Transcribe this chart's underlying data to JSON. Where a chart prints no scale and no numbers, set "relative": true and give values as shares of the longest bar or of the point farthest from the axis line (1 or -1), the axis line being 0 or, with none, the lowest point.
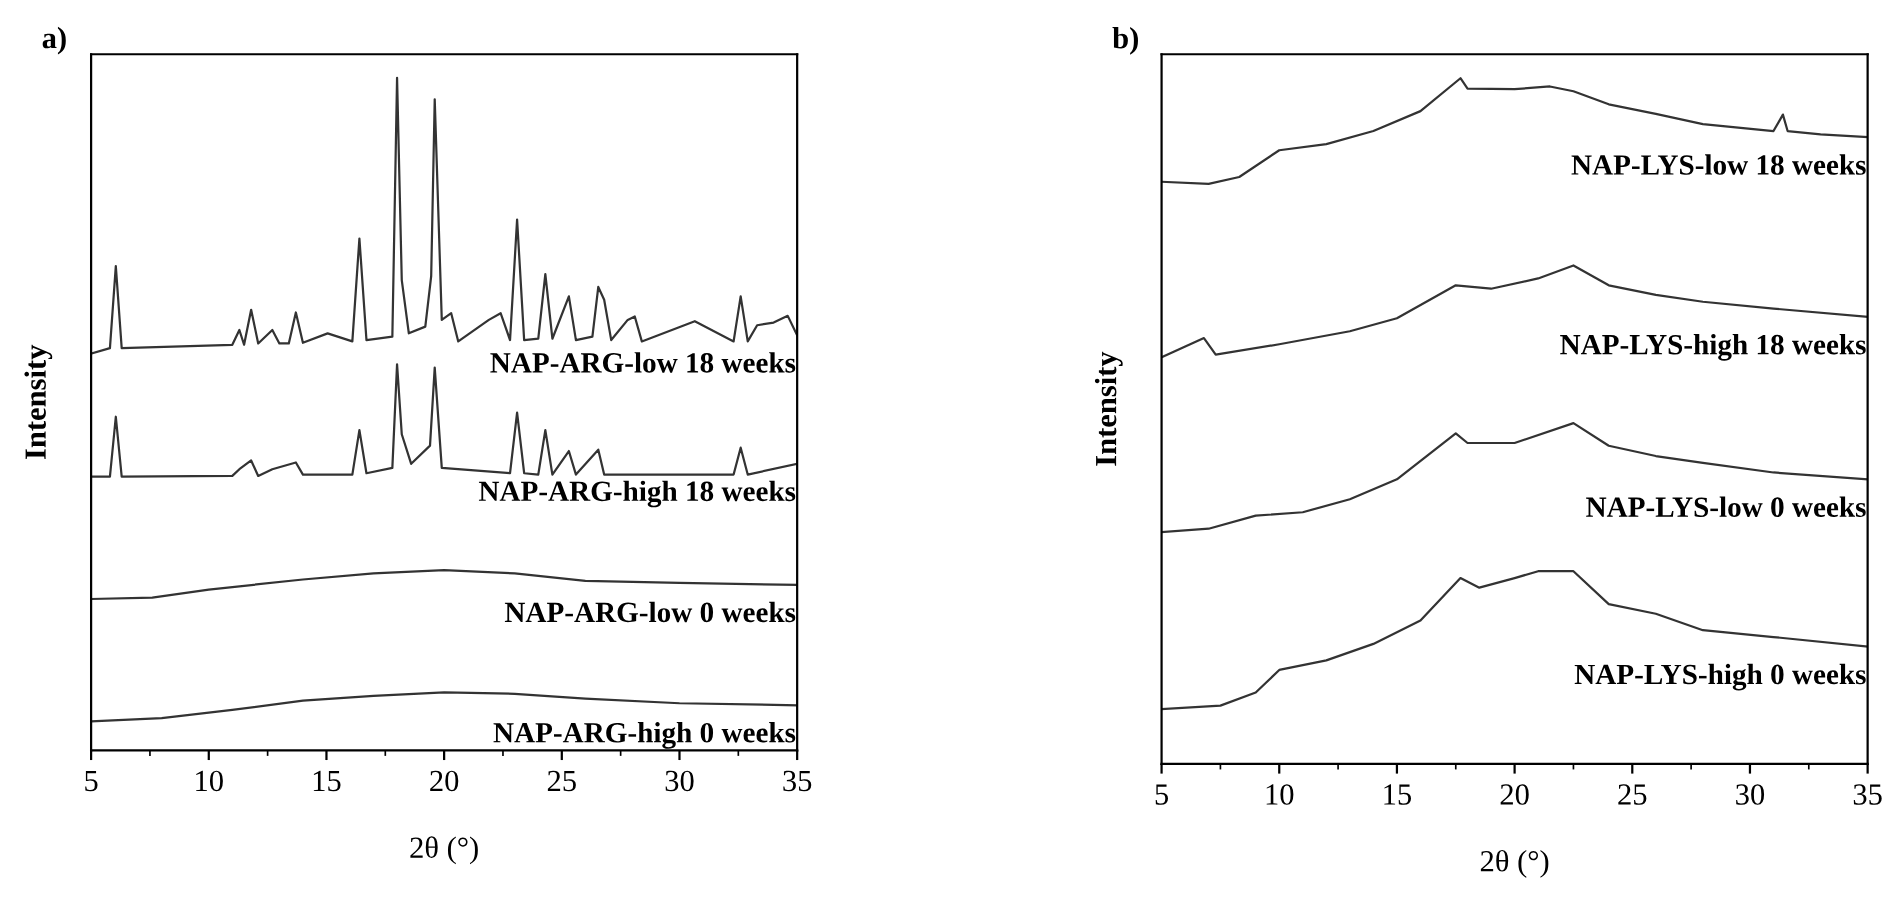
{
  "chart_data": [
    {
      "type": "line",
      "title": "a)",
      "xlabel": "2θ (°)",
      "ylabel": "Intensity",
      "relative": true,
      "xlim": [
        5,
        35
      ],
      "xticks": [
        5,
        10,
        15,
        20,
        25,
        30,
        35
      ],
      "tick_labels": "x",
      "legend": false,
      "grid": false,
      "marker": "none",
      "line_style": "solid",
      "series": [
        {
          "name": "NAP-ARG-low 18 weeks",
          "color": "#333333",
          "x": [
            5,
            5.8,
            6.05,
            6.3,
            11.0,
            11.3,
            11.5,
            11.8,
            12.1,
            12.7,
            13.0,
            13.4,
            13.7,
            14.0,
            15.05,
            16.1,
            16.4,
            16.7,
            17.8,
            18.0,
            18.2,
            18.5,
            19.2,
            19.45,
            19.6,
            19.9,
            20.3,
            20.6,
            21.9,
            22.4,
            22.8,
            23.1,
            23.4,
            24.0,
            24.3,
            24.6,
            25.3,
            25.6,
            26.3,
            26.55,
            26.8,
            27.1,
            27.8,
            28.1,
            28.4,
            30.65,
            32.3,
            32.6,
            32.9,
            33.3,
            34.0,
            34.6,
            35
          ],
          "values": [
            0.59,
            0.598,
            0.72,
            0.598,
            0.603,
            0.625,
            0.603,
            0.655,
            0.605,
            0.625,
            0.605,
            0.605,
            0.651,
            0.606,
            0.62,
            0.608,
            0.761,
            0.61,
            0.615,
            1.0,
            0.699,
            0.62,
            0.63,
            0.705,
            0.968,
            0.64,
            0.65,
            0.608,
            0.64,
            0.65,
            0.61,
            0.789,
            0.61,
            0.612,
            0.708,
            0.612,
            0.675,
            0.61,
            0.615,
            0.689,
            0.67,
            0.61,
            0.64,
            0.645,
            0.608,
            0.638,
            0.608,
            0.675,
            0.608,
            0.632,
            0.636,
            0.646,
            0.617
          ]
        },
        {
          "name": "NAP-ARG-high 18 weeks",
          "color": "#333333",
          "x": [
            5,
            5.8,
            6.05,
            6.3,
            11.0,
            11.3,
            11.8,
            12.1,
            12.7,
            13.7,
            14.0,
            16.1,
            16.4,
            16.7,
            17.8,
            18.0,
            18.2,
            18.6,
            19.4,
            19.6,
            19.9,
            22.8,
            23.1,
            23.4,
            24.0,
            24.3,
            24.6,
            25.3,
            25.6,
            26.55,
            26.8,
            32.3,
            32.6,
            32.9,
            35
          ],
          "values": [
            0.407,
            0.407,
            0.496,
            0.407,
            0.408,
            0.418,
            0.431,
            0.408,
            0.418,
            0.428,
            0.41,
            0.41,
            0.476,
            0.412,
            0.42,
            0.574,
            0.47,
            0.426,
            0.453,
            0.569,
            0.42,
            0.412,
            0.502,
            0.412,
            0.41,
            0.476,
            0.41,
            0.445,
            0.41,
            0.447,
            0.41,
            0.41,
            0.45,
            0.41,
            0.426
          ]
        },
        {
          "name": "NAP-ARG-low 0 weeks",
          "color": "#333333",
          "x": [
            5,
            7.6,
            10,
            14,
            17,
            20,
            23,
            26,
            30,
            35
          ],
          "values": [
            0.225,
            0.227,
            0.239,
            0.254,
            0.263,
            0.268,
            0.263,
            0.252,
            0.249,
            0.246
          ]
        },
        {
          "name": "NAP-ARG-high 0 weeks",
          "color": "#333333",
          "x": [
            5,
            8,
            11,
            14,
            17,
            20,
            23,
            26,
            30,
            35
          ],
          "values": [
            0.043,
            0.048,
            0.06,
            0.074,
            0.081,
            0.086,
            0.084,
            0.077,
            0.07,
            0.067
          ]
        }
      ]
    },
    {
      "type": "line",
      "title": "b)",
      "xlabel": "2θ (°)",
      "ylabel": "Intensity",
      "relative": true,
      "xlim": [
        5,
        35
      ],
      "xticks": [
        5,
        10,
        15,
        20,
        25,
        30,
        35
      ],
      "tick_labels": "x",
      "legend": false,
      "grid": false,
      "marker": "none",
      "line_style": "solid",
      "series": [
        {
          "name": "NAP-LYS-low 18 weeks",
          "color": "#333333",
          "x": [
            5,
            7,
            8.3,
            10,
            12,
            14,
            16,
            17.7,
            18,
            20,
            21.5,
            22.5,
            24,
            26,
            28,
            31,
            31.4,
            31.6,
            33,
            35
          ],
          "values": [
            0.849,
            0.846,
            0.856,
            0.895,
            0.904,
            0.923,
            0.952,
            1.0,
            0.985,
            0.984,
            0.988,
            0.981,
            0.962,
            0.948,
            0.933,
            0.923,
            0.947,
            0.923,
            0.918,
            0.914
          ]
        },
        {
          "name": "NAP-LYS-high 18 weeks",
          "color": "#333333",
          "x": [
            5,
            6.8,
            7.3,
            10,
            13,
            15,
            17.5,
            19,
            21,
            22.5,
            24,
            26,
            28,
            31,
            35
          ],
          "values": [
            0.593,
            0.621,
            0.597,
            0.612,
            0.631,
            0.65,
            0.698,
            0.693,
            0.708,
            0.727,
            0.698,
            0.684,
            0.674,
            0.664,
            0.652
          ]
        },
        {
          "name": "NAP-LYS-low 0 weeks",
          "color": "#333333",
          "x": [
            5,
            7,
            9,
            11,
            13,
            15,
            17.5,
            18,
            20,
            22.5,
            24,
            26,
            28,
            31,
            35
          ],
          "values": [
            0.338,
            0.343,
            0.362,
            0.367,
            0.386,
            0.415,
            0.482,
            0.468,
            0.468,
            0.497,
            0.464,
            0.449,
            0.439,
            0.425,
            0.415
          ]
        },
        {
          "name": "NAP-LYS-high 0 weeks",
          "color": "#333333",
          "x": [
            5,
            7.5,
            9,
            10,
            12,
            14,
            16,
            17.7,
            18.5,
            20,
            21,
            22.5,
            24,
            26,
            28,
            31,
            35
          ],
          "values": [
            0.08,
            0.085,
            0.104,
            0.137,
            0.151,
            0.175,
            0.209,
            0.271,
            0.257,
            0.271,
            0.281,
            0.281,
            0.233,
            0.219,
            0.195,
            0.185,
            0.171
          ]
        }
      ]
    }
  ]
}
